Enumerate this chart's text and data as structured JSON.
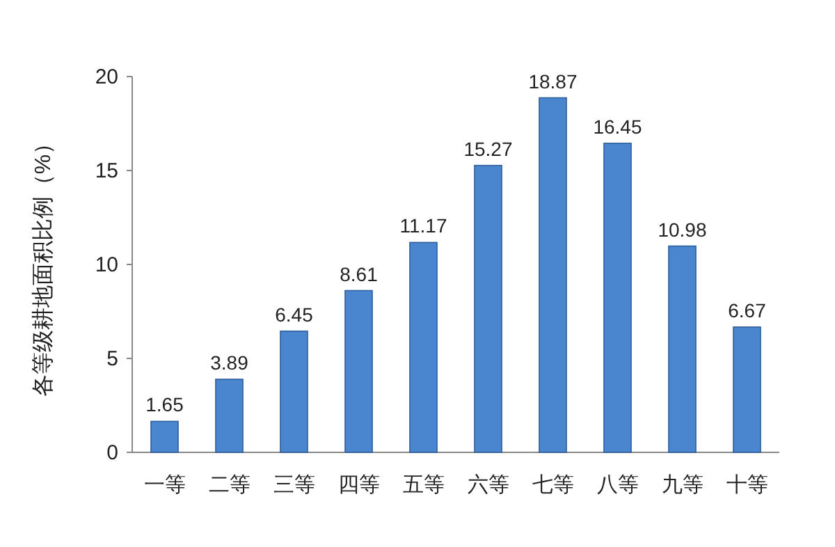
{
  "chart_data": {
    "type": "bar",
    "ylabel": "各等级耕地面积比例（%）",
    "categories": [
      "一等",
      "二等",
      "三等",
      "四等",
      "五等",
      "六等",
      "七等",
      "八等",
      "九等",
      "十等"
    ],
    "values": [
      1.65,
      3.89,
      6.45,
      8.61,
      11.17,
      15.27,
      18.87,
      16.45,
      10.98,
      6.67
    ],
    "color": "#4a86d0",
    "ylim": [
      0,
      20
    ],
    "yticks": [
      0,
      5,
      10,
      15,
      20
    ],
    "data_labels": true,
    "grid": false
  }
}
